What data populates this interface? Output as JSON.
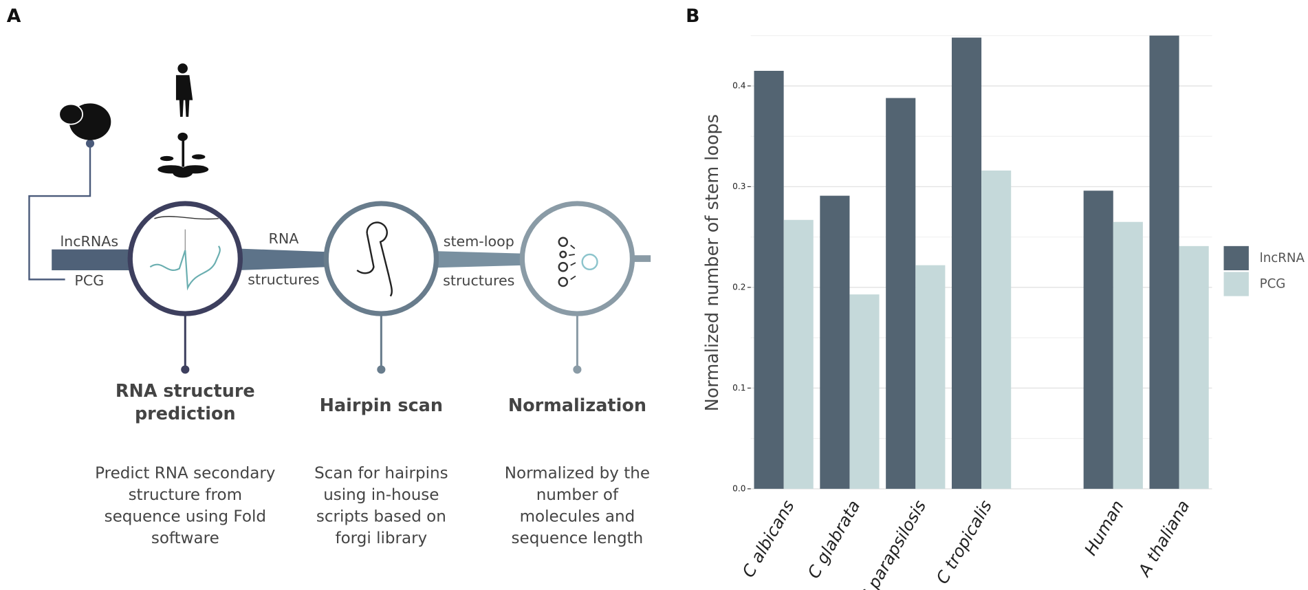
{
  "diagram": {
    "panel_label": "A",
    "inputs": [
      "lncRNAs",
      "PCG"
    ],
    "connectors": [
      [
        "RNA",
        "structures"
      ],
      [
        "stem-loop",
        "structures"
      ]
    ],
    "steps": [
      {
        "title": [
          "RNA structure",
          "prediction"
        ],
        "description": [
          "Predict RNA secondary",
          "structure from",
          "sequence using Fold",
          "software"
        ]
      },
      {
        "title": [
          "Hairpin scan"
        ],
        "description": [
          "Scan for hairpins",
          "using in-house",
          "scripts based on",
          "forgi library"
        ]
      },
      {
        "title": [
          "Normalization"
        ],
        "description": [
          "Normalized by the",
          "number of",
          "molecules and",
          "sequence length"
        ]
      }
    ]
  },
  "chart_data": {
    "type": "bar",
    "panel_label": "B",
    "y_label": "Normalized number of stem loops",
    "categories": [
      "C albicans",
      "C glabrata",
      "C parapsilosis",
      "C tropicalis",
      null,
      "Human",
      "A thaliana"
    ],
    "series": [
      {
        "name": "lncRNA",
        "color": "#536472",
        "values": [
          0.415,
          0.291,
          0.388,
          0.448,
          null,
          0.296,
          0.45
        ]
      },
      {
        "name": "PCG",
        "color": "#c5d9da",
        "values": [
          0.267,
          0.193,
          0.222,
          0.316,
          null,
          0.265,
          0.241
        ]
      }
    ],
    "ylim": [
      0,
      0.455
    ],
    "yticks": [
      {
        "value": 0,
        "label": "0.0"
      },
      0.1,
      0.2,
      0.3,
      0.4
    ],
    "minor_yticks": [
      0.05,
      0.15,
      0.25,
      0.35,
      0.45
    ],
    "grid": true,
    "legend": "right"
  }
}
